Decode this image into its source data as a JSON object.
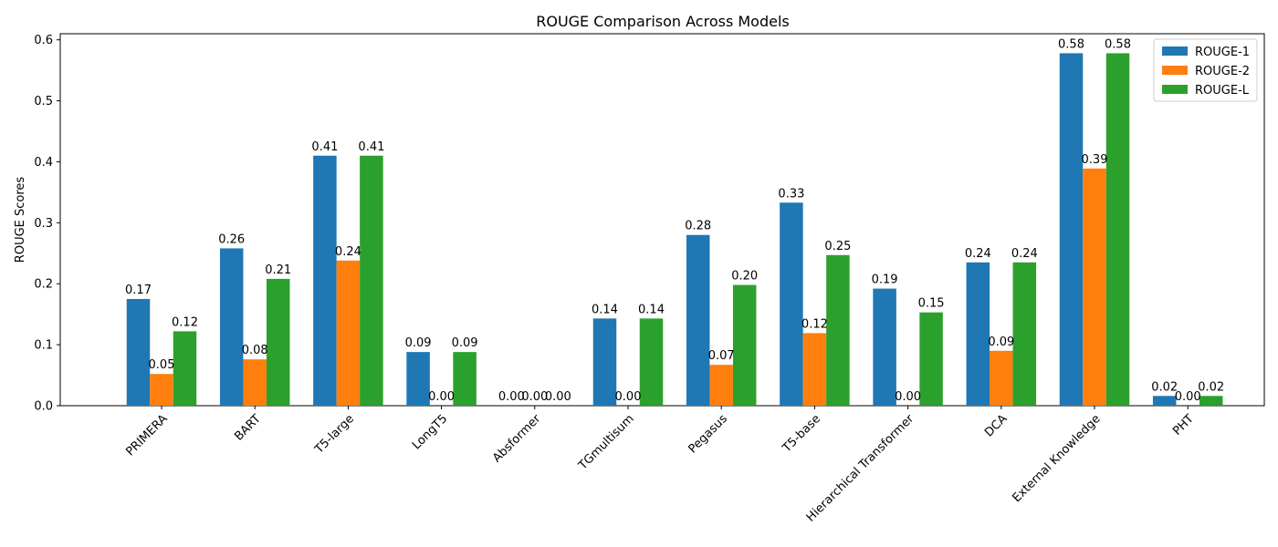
{
  "chart_data": {
    "type": "bar",
    "title": "ROUGE Comparison Across Models",
    "xlabel": "",
    "ylabel": "ROUGE Scores",
    "ylim": [
      0,
      0.61
    ],
    "yticks": [
      0.0,
      0.1,
      0.2,
      0.3,
      0.4,
      0.5,
      0.6
    ],
    "ytick_labels": [
      "0.0",
      "0.1",
      "0.2",
      "0.3",
      "0.4",
      "0.5",
      "0.6"
    ],
    "grid": false,
    "legend_position": "top-right",
    "categories": [
      "PRIMERA",
      "BART",
      "T5-large",
      "LongT5",
      "Absformer",
      "TGmultisum",
      "Pegasus",
      "T5-base",
      "Hierarchical Transformer",
      "DCA",
      "External Knowledge",
      "PHT"
    ],
    "series": [
      {
        "name": "ROUGE-1",
        "color": "#1f77b4",
        "values": [
          0.175,
          0.258,
          0.41,
          0.088,
          0.0,
          0.143,
          0.28,
          0.333,
          0.192,
          0.235,
          0.578,
          0.016
        ],
        "labels": [
          "0.17",
          "0.26",
          "0.41",
          "0.09",
          "0.00",
          "0.14",
          "0.28",
          "0.33",
          "0.19",
          "0.24",
          "0.58",
          "0.02"
        ]
      },
      {
        "name": "ROUGE-2",
        "color": "#ff7f0e",
        "values": [
          0.052,
          0.076,
          0.238,
          0.0,
          0.0,
          0.0,
          0.067,
          0.119,
          0.0,
          0.09,
          0.389,
          0.0
        ],
        "labels": [
          "0.05",
          "0.08",
          "0.24",
          "0.00",
          "0.00",
          "0.00",
          "0.07",
          "0.12",
          "0.00",
          "0.09",
          "0.39",
          "0.00"
        ]
      },
      {
        "name": "ROUGE-L",
        "color": "#2ca02c",
        "values": [
          0.122,
          0.208,
          0.41,
          0.088,
          0.0,
          0.143,
          0.198,
          0.247,
          0.153,
          0.235,
          0.578,
          0.016
        ],
        "labels": [
          "0.12",
          "0.21",
          "0.41",
          "0.09",
          "0.00",
          "0.14",
          "0.20",
          "0.25",
          "0.15",
          "0.24",
          "0.58",
          "0.02"
        ]
      }
    ]
  }
}
